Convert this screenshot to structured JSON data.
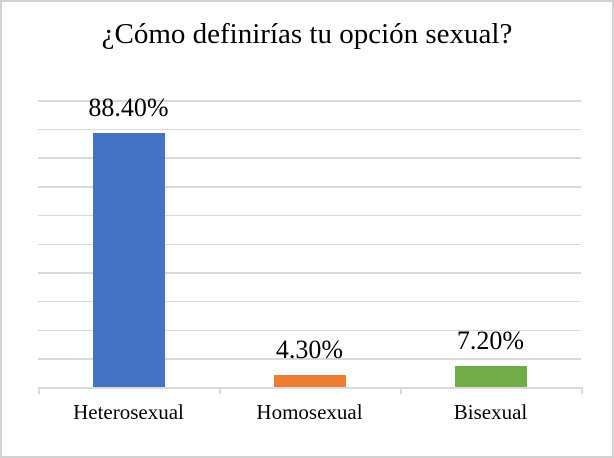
{
  "frame": {
    "background": "#ffffff",
    "border_color": "#d2d2d2"
  },
  "chart_data": {
    "type": "bar",
    "title": "¿Cómo definirías tu opción sexual?",
    "categories": [
      "Heterosexual",
      "Homosexual",
      "Bisexual"
    ],
    "values": [
      88.4,
      4.3,
      7.2
    ],
    "data_labels": [
      "88.40%",
      "4.30%",
      "7.20%"
    ],
    "bar_colors": [
      "#4472C4",
      "#ED7D31",
      "#70AD47"
    ],
    "xlabel": "",
    "ylabel": "",
    "ylim": [
      0,
      100
    ],
    "gridline_step": 10,
    "grid": true,
    "gridline_color": "#d9d9d9",
    "axis_color": "#d9d9d9",
    "y_axis_tick_labels_visible": false,
    "legend": "none"
  }
}
